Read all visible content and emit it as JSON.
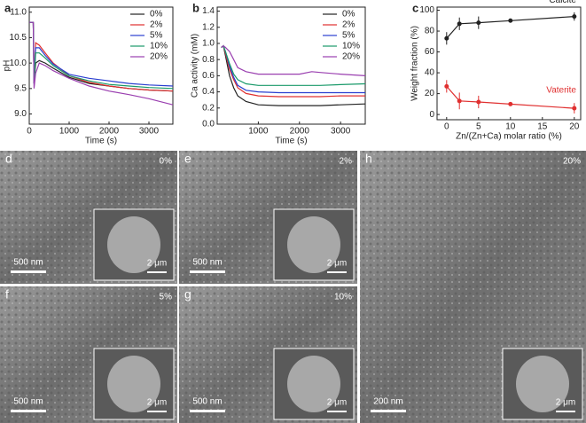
{
  "chart_data": [
    {
      "type": "line",
      "label": "a",
      "x_label": "Time (s)",
      "y_label": "pH",
      "legend": "upper right",
      "x": [
        0,
        100,
        120,
        160,
        250,
        400,
        600,
        1000,
        1500,
        2000,
        2500,
        3000,
        3600
      ],
      "series": [
        {
          "name": "0%",
          "color": "#222222",
          "values": [
            10.8,
            10.8,
            9.6,
            10.0,
            10.05,
            10.0,
            9.9,
            9.72,
            9.6,
            9.55,
            9.5,
            9.47,
            9.45
          ]
        },
        {
          "name": "2%",
          "color": "#e03030",
          "values": [
            10.8,
            10.8,
            9.6,
            10.4,
            10.35,
            10.2,
            10.0,
            9.75,
            9.62,
            9.55,
            9.5,
            9.47,
            9.45
          ]
        },
        {
          "name": "5%",
          "color": "#2a3fd0",
          "values": [
            10.8,
            10.8,
            9.6,
            10.3,
            10.3,
            10.15,
            9.98,
            9.78,
            9.7,
            9.65,
            9.6,
            9.57,
            9.55
          ]
        },
        {
          "name": "10%",
          "color": "#1a9a6a",
          "values": [
            10.8,
            10.8,
            9.6,
            10.2,
            10.2,
            10.1,
            9.95,
            9.75,
            9.65,
            9.58,
            9.55,
            9.52,
            9.5
          ]
        },
        {
          "name": "20%",
          "color": "#9a3fb0",
          "values": [
            10.8,
            10.8,
            9.5,
            9.8,
            10.0,
            9.95,
            9.85,
            9.7,
            9.55,
            9.45,
            9.38,
            9.3,
            9.18
          ]
        }
      ],
      "xlim": [
        0,
        3600
      ],
      "xticks": [
        0,
        1000,
        2000,
        3000
      ],
      "ylim": [
        8.8,
        11.1
      ],
      "yticks": [
        {
          "value": 9,
          "label": "9.0"
        },
        9.5,
        {
          "value": 10,
          "label": "10.0"
        },
        10.5,
        {
          "value": 11,
          "label": "11.0"
        }
      ]
    },
    {
      "type": "line",
      "label": "b",
      "x_label": "Time (s)",
      "y_label": "Ca activity (mM)",
      "legend": "upper right",
      "x": [
        100,
        150,
        200,
        300,
        400,
        500,
        700,
        1000,
        1500,
        2000,
        2300,
        2500,
        3000,
        3600
      ],
      "series": [
        {
          "name": "0%",
          "color": "#222222",
          "values": [
            0.95,
            0.97,
            0.85,
            0.6,
            0.45,
            0.35,
            0.28,
            0.24,
            0.23,
            0.23,
            0.23,
            0.23,
            0.24,
            0.25
          ]
        },
        {
          "name": "2%",
          "color": "#e03030",
          "values": [
            0.95,
            0.97,
            0.88,
            0.68,
            0.55,
            0.45,
            0.38,
            0.35,
            0.34,
            0.34,
            0.34,
            0.34,
            0.35,
            0.35
          ]
        },
        {
          "name": "5%",
          "color": "#2a3fd0",
          "values": [
            0.95,
            0.97,
            0.9,
            0.72,
            0.58,
            0.48,
            0.42,
            0.4,
            0.39,
            0.39,
            0.39,
            0.39,
            0.39,
            0.39
          ]
        },
        {
          "name": "10%",
          "color": "#1a9a6a",
          "values": [
            0.95,
            0.97,
            0.9,
            0.75,
            0.62,
            0.55,
            0.5,
            0.48,
            0.48,
            0.48,
            0.48,
            0.48,
            0.49,
            0.5
          ]
        },
        {
          "name": "20%",
          "color": "#9a3fb0",
          "values": [
            0.95,
            0.97,
            0.95,
            0.9,
            0.8,
            0.7,
            0.65,
            0.62,
            0.62,
            0.62,
            0.65,
            0.64,
            0.62,
            0.6
          ]
        }
      ],
      "xlim": [
        0,
        3600
      ],
      "xticks": [
        1000,
        2000,
        3000
      ],
      "ylim": [
        0,
        1.45
      ],
      "yticks": [
        {
          "value": 0,
          "label": "0.0"
        },
        0.2,
        0.4,
        0.6,
        0.8,
        {
          "value": 1,
          "label": "1.0"
        },
        1.2,
        1.4
      ]
    },
    {
      "type": "scatter",
      "label": "c",
      "x_label": "Zn/(Zn+Ca) molar ratio (%)",
      "y_label": "Weight fraction (%)",
      "x": [
        0,
        2,
        5,
        10,
        20
      ],
      "series": [
        {
          "name": "Calcite",
          "color": "#222222",
          "values": [
            73,
            87,
            88,
            90,
            94
          ],
          "errors": [
            6,
            6,
            6,
            1,
            4
          ]
        },
        {
          "name": "Vaterite",
          "color": "#e03030",
          "values": [
            27,
            13,
            12,
            10,
            6
          ],
          "errors": [
            6,
            8,
            6,
            1,
            5
          ]
        }
      ],
      "xlim": [
        -1.5,
        21
      ],
      "xticks": [
        0,
        5,
        10,
        15,
        20
      ],
      "ylim": [
        -5,
        103
      ],
      "yticks": [
        0,
        20,
        40,
        60,
        80,
        100
      ]
    }
  ],
  "images": [
    {
      "label": "d",
      "tag": "0%",
      "scale": "500 nm",
      "inset_scale": "2 μm"
    },
    {
      "label": "e",
      "tag": "2%",
      "scale": "500 nm",
      "inset_scale": "2 μm"
    },
    {
      "label": "f",
      "tag": "5%",
      "scale": "500 nm",
      "inset_scale": "2 μm"
    },
    {
      "label": "g",
      "tag": "10%",
      "scale": "500 nm",
      "inset_scale": "2 μm"
    },
    {
      "label": "h",
      "tag": "20%",
      "scale": "200 nm",
      "inset_scale": "2 μm"
    }
  ]
}
